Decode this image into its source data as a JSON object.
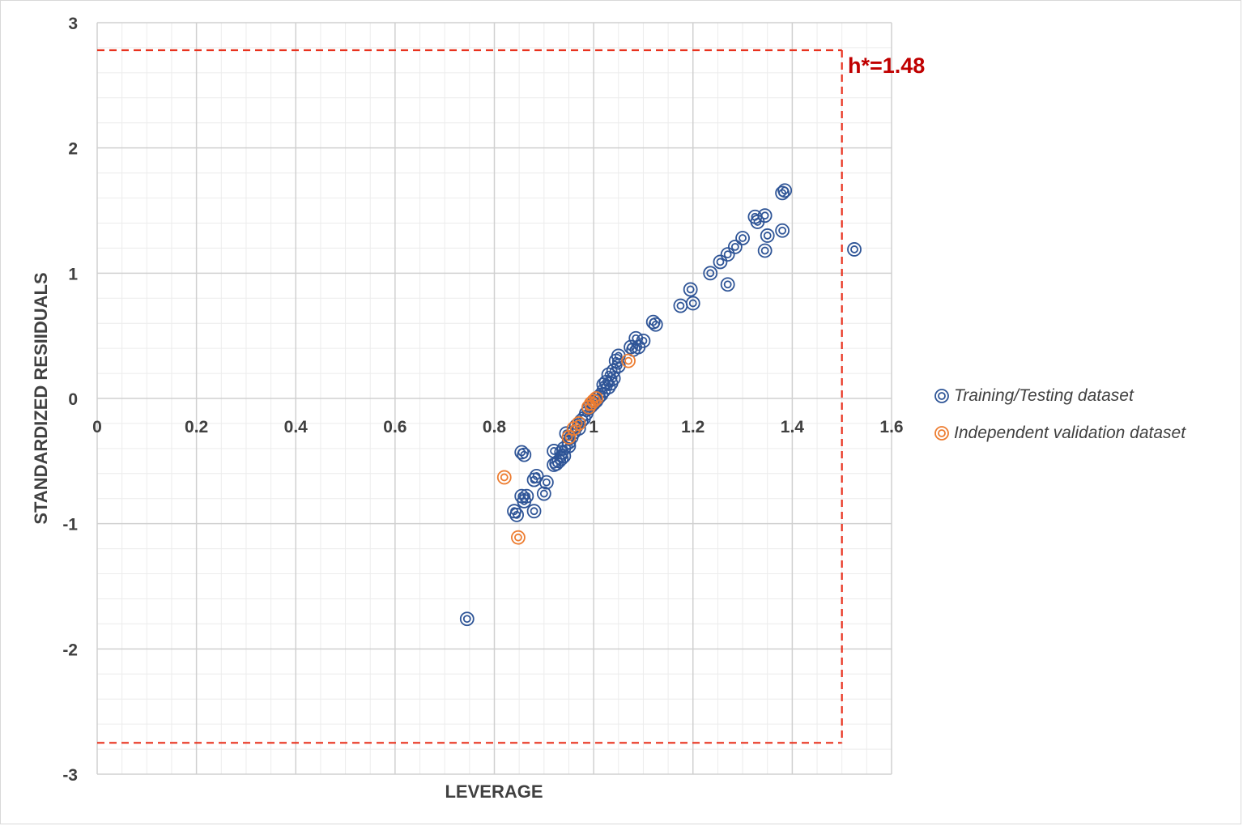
{
  "chart_data": {
    "type": "scatter",
    "title": "",
    "xlabel": "LEVERAGE",
    "ylabel": "STANDARDIZED RESIIDUALS",
    "xlim": [
      0,
      1.6
    ],
    "ylim": [
      -3,
      3
    ],
    "x_ticks": [
      "0",
      "0.2",
      "0.4",
      "0.6",
      "0.8",
      "1",
      "1.2",
      "1.4",
      "1.6"
    ],
    "y_ticks": [
      "3",
      "2",
      "1",
      "0",
      "-1",
      "-2",
      "-3"
    ],
    "grid": true,
    "legend_position": "right",
    "annotation": "h*=1.48",
    "limit_lines": {
      "warning_leverage": 1.5,
      "residual_upper": 2.78,
      "residual_lower": -2.75,
      "color": "#e8321e"
    },
    "series": [
      {
        "name": "Training/Testing dataset",
        "color": "#2f5597",
        "points": [
          [
            0.745,
            -1.76
          ],
          [
            0.84,
            -0.9
          ],
          [
            0.845,
            -0.93
          ],
          [
            0.855,
            -0.43
          ],
          [
            0.86,
            -0.45
          ],
          [
            0.855,
            -0.78
          ],
          [
            0.86,
            -0.82
          ],
          [
            0.865,
            -0.78
          ],
          [
            0.88,
            -0.9
          ],
          [
            0.88,
            -0.65
          ],
          [
            0.885,
            -0.62
          ],
          [
            0.9,
            -0.76
          ],
          [
            0.905,
            -0.67
          ],
          [
            0.92,
            -0.53
          ],
          [
            0.92,
            -0.42
          ],
          [
            0.925,
            -0.52
          ],
          [
            0.93,
            -0.5
          ],
          [
            0.935,
            -0.48
          ],
          [
            0.935,
            -0.43
          ],
          [
            0.94,
            -0.46
          ],
          [
            0.94,
            -0.4
          ],
          [
            0.945,
            -0.28
          ],
          [
            0.95,
            -0.38
          ],
          [
            0.95,
            -0.35
          ],
          [
            0.955,
            -0.31
          ],
          [
            0.96,
            -0.27
          ],
          [
            0.965,
            -0.22
          ],
          [
            0.97,
            -0.24
          ],
          [
            0.975,
            -0.18
          ],
          [
            0.98,
            -0.16
          ],
          [
            0.985,
            -0.12
          ],
          [
            0.99,
            -0.08
          ],
          [
            0.995,
            -0.06
          ],
          [
            1.0,
            -0.04
          ],
          [
            1.005,
            -0.02
          ],
          [
            1.01,
            0.01
          ],
          [
            1.015,
            0.03
          ],
          [
            1.02,
            0.06
          ],
          [
            1.02,
            0.11
          ],
          [
            1.025,
            0.13
          ],
          [
            1.03,
            0.19
          ],
          [
            1.03,
            0.09
          ],
          [
            1.035,
            0.12
          ],
          [
            1.04,
            0.16
          ],
          [
            1.04,
            0.22
          ],
          [
            1.045,
            0.3
          ],
          [
            1.05,
            0.34
          ],
          [
            1.05,
            0.26
          ],
          [
            1.075,
            0.41
          ],
          [
            1.08,
            0.39
          ],
          [
            1.085,
            0.48
          ],
          [
            1.09,
            0.41
          ],
          [
            1.1,
            0.46
          ],
          [
            1.12,
            0.61
          ],
          [
            1.125,
            0.59
          ],
          [
            1.175,
            0.74
          ],
          [
            1.195,
            0.87
          ],
          [
            1.2,
            0.76
          ],
          [
            1.235,
            1.0
          ],
          [
            1.255,
            1.09
          ],
          [
            1.27,
            1.15
          ],
          [
            1.27,
            0.91
          ],
          [
            1.285,
            1.21
          ],
          [
            1.3,
            1.28
          ],
          [
            1.325,
            1.45
          ],
          [
            1.33,
            1.41
          ],
          [
            1.345,
            1.46
          ],
          [
            1.345,
            1.18
          ],
          [
            1.35,
            1.3
          ],
          [
            1.38,
            1.64
          ],
          [
            1.385,
            1.66
          ],
          [
            1.38,
            1.34
          ],
          [
            1.525,
            1.19
          ]
        ]
      },
      {
        "name": "Independent validation dataset",
        "color": "#ed7d31",
        "points": [
          [
            0.82,
            -0.63
          ],
          [
            0.848,
            -1.11
          ],
          [
            0.95,
            -0.31
          ],
          [
            0.96,
            -0.24
          ],
          [
            0.97,
            -0.2
          ],
          [
            0.99,
            -0.07
          ],
          [
            0.995,
            -0.04
          ],
          [
            1.0,
            -0.02
          ],
          [
            1.005,
            0.0
          ],
          [
            1.07,
            0.3
          ]
        ]
      }
    ]
  }
}
